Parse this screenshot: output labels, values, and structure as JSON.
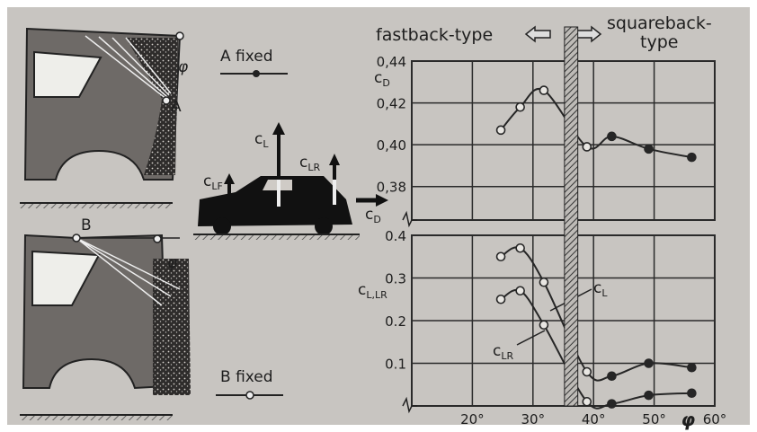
{
  "chart_data": [
    {
      "type": "line",
      "y_label": {
        "symbol": "c",
        "subscript": "D"
      },
      "xlim": [
        10,
        60
      ],
      "ylim": [
        0.364,
        0.44
      ],
      "yticks": [
        {
          "value": 0.38,
          "label": "0,38"
        },
        {
          "value": 0.4,
          "label": "0,40"
        },
        {
          "value": 0.42,
          "label": "0,42"
        },
        {
          "value": 0.44,
          "label": "0,44"
        }
      ],
      "grid": true,
      "x": [
        24.7,
        27.9,
        31.8,
        38.9,
        43.0,
        49.1,
        56.2
      ],
      "series": [
        {
          "color": "#262626",
          "values": [
            0.407,
            0.418,
            0.426,
            0.399,
            0.404,
            0.398,
            0.394
          ],
          "marker_styles": [
            "open",
            "open",
            "open",
            "open",
            "filled",
            "filled",
            "filled"
          ]
        }
      ],
      "shaded_band": [
        35.2,
        37.4
      ],
      "annotations": {
        "fastback": "fastback-type",
        "squareback": [
          "squareback-",
          "type"
        ]
      }
    },
    {
      "type": "line",
      "y_label": {
        "symbol": "c",
        "subscript": "L,LR"
      },
      "x_label": "φ",
      "xlim": [
        10,
        60
      ],
      "ylim": [
        0,
        0.4
      ],
      "xticks": [
        {
          "value": 20,
          "label": "20°"
        },
        {
          "value": 30,
          "label": "30°"
        },
        {
          "value": 40,
          "label": "40°"
        },
        {
          "value": 50,
          "label": "50°"
        },
        {
          "value": 60,
          "label": "60°"
        }
      ],
      "yticks": [
        0.1,
        0.2,
        0.3,
        0.4
      ],
      "grid": true,
      "x": [
        24.7,
        27.9,
        31.8,
        38.9,
        43.0,
        49.1,
        56.2
      ],
      "series": [
        {
          "label": {
            "symbol": "c",
            "subscript": "L"
          },
          "color": "#262626",
          "values": [
            0.35,
            0.37,
            0.29,
            0.08,
            0.07,
            0.1,
            0.09
          ],
          "marker_styles": [
            "open",
            "open",
            "open",
            "open",
            "filled",
            "filled",
            "filled"
          ]
        },
        {
          "label": {
            "symbol": "c",
            "subscript": "LR"
          },
          "color": "#262626",
          "values": [
            0.25,
            0.27,
            0.19,
            0.01,
            0.005,
            0.025,
            0.03
          ],
          "marker_styles": [
            "open",
            "open",
            "open",
            "open",
            "filled",
            "filled",
            "filled"
          ]
        }
      ]
    }
  ],
  "legend": [
    {
      "label": "A fixed",
      "marker": "filled"
    },
    {
      "label": "B fixed",
      "marker": "open"
    }
  ],
  "illustration": {
    "points": [
      "A",
      "B"
    ],
    "angle": "φ",
    "forces": [
      {
        "symbol": "c",
        "subscript": "L"
      },
      {
        "symbol": "c",
        "subscript": "LF"
      },
      {
        "symbol": "c",
        "subscript": "LR"
      },
      {
        "symbol": "c",
        "subscript": "D"
      }
    ]
  }
}
